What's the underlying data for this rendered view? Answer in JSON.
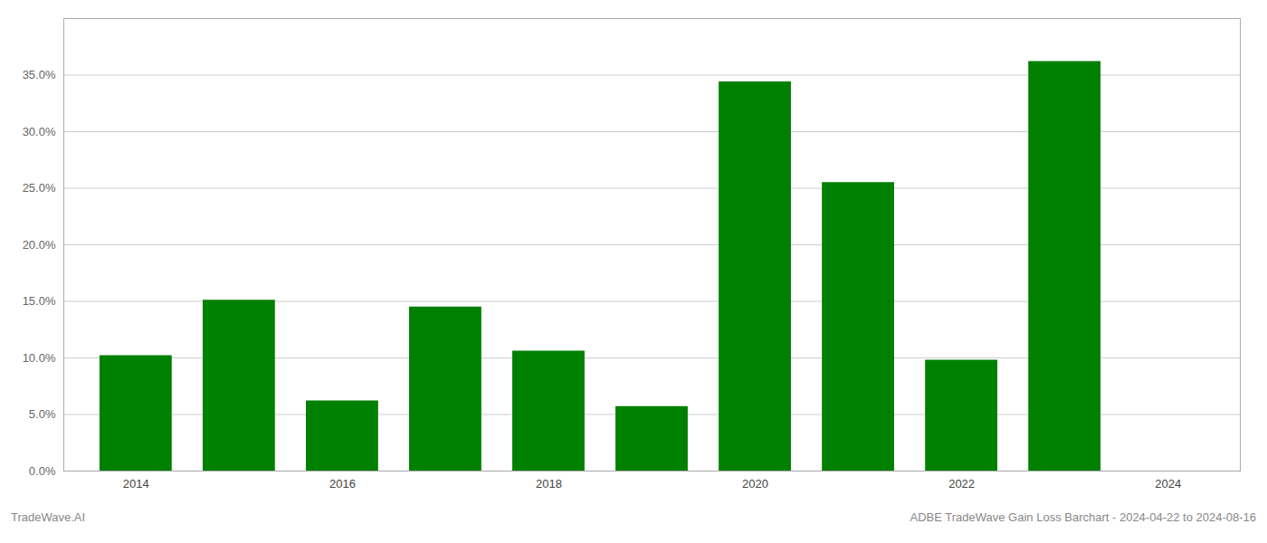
{
  "chart_data": {
    "type": "bar",
    "x": [
      2014,
      2015,
      2016,
      2017,
      2018,
      2019,
      2020,
      2021,
      2022,
      2023
    ],
    "values": [
      0.102,
      0.151,
      0.062,
      0.145,
      0.106,
      0.057,
      0.344,
      0.255,
      0.098,
      0.362
    ],
    "color": "#008000",
    "xlim": [
      2013.3,
      2024.7
    ],
    "xticks": [
      2014,
      2016,
      2018,
      2020,
      2022,
      2024
    ],
    "ylim": [
      0,
      0.4
    ],
    "yticks": [
      {
        "value": 0.0,
        "label": "0.0%"
      },
      {
        "value": 0.05,
        "label": "5.0%"
      },
      {
        "value": 0.1,
        "label": "10.0%"
      },
      {
        "value": 0.15,
        "label": "15.0%"
      },
      {
        "value": 0.2,
        "label": "20.0%"
      },
      {
        "value": 0.25,
        "label": "25.0%"
      },
      {
        "value": 0.3,
        "label": "30.0%"
      },
      {
        "value": 0.35,
        "label": "35.0%"
      }
    ],
    "grid": true,
    "annotations": [
      "TradeWave.AI",
      "ADBE TradeWave Gain Loss Barchart - 2024-04-22 to 2024-08-16"
    ]
  }
}
